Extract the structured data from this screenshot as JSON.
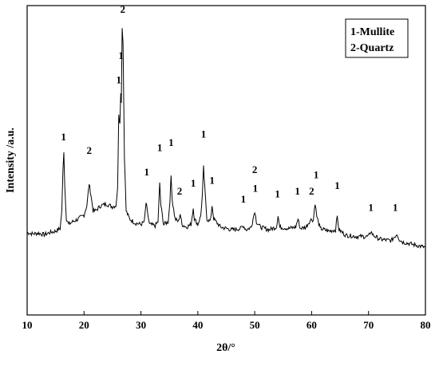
{
  "chart_data": {
    "type": "line",
    "title": "",
    "xlabel": "2θ/°",
    "ylabel": "Intensity /a.u.",
    "xlim": [
      10,
      80
    ],
    "ylim": [
      0,
      100
    ],
    "x_ticks": [
      10,
      20,
      30,
      40,
      50,
      60,
      70,
      80
    ],
    "grid": false,
    "legend": {
      "placement": "top-right",
      "entries": [
        "1-Mullite",
        "2-Quartz"
      ]
    },
    "series": [
      {
        "color": "#000000",
        "points": [
          [
            10,
            26
          ],
          [
            11,
            25.5
          ],
          [
            12,
            25.8
          ],
          [
            13,
            25.2
          ],
          [
            14,
            26
          ],
          [
            15,
            26.5
          ],
          [
            15.8,
            27.5
          ],
          [
            16.1,
            34
          ],
          [
            16.3,
            50
          ],
          [
            16.45,
            56
          ],
          [
            16.6,
            44
          ],
          [
            16.9,
            31
          ],
          [
            17.3,
            29
          ],
          [
            18,
            30
          ],
          [
            19,
            31
          ],
          [
            20,
            32.5
          ],
          [
            20.5,
            36
          ],
          [
            20.9,
            44
          ],
          [
            21.2,
            40
          ],
          [
            21.6,
            34
          ],
          [
            22,
            34
          ],
          [
            23,
            36
          ],
          [
            24,
            36.5
          ],
          [
            25,
            35.5
          ],
          [
            25.6,
            36
          ],
          [
            25.9,
            42
          ],
          [
            26.1,
            70
          ],
          [
            26.3,
            66
          ],
          [
            26.45,
            78
          ],
          [
            26.55,
            74
          ],
          [
            26.7,
            102
          ],
          [
            26.85,
            96
          ],
          [
            27.1,
            54
          ],
          [
            27.4,
            34
          ],
          [
            28,
            31
          ],
          [
            29,
            29.5
          ],
          [
            30,
            29
          ],
          [
            30.6,
            30
          ],
          [
            30.9,
            37
          ],
          [
            31.1,
            34
          ],
          [
            31.5,
            29
          ],
          [
            32.5,
            28.5
          ],
          [
            33,
            30
          ],
          [
            33.3,
            44
          ],
          [
            33.5,
            36
          ],
          [
            34,
            29
          ],
          [
            34.8,
            30
          ],
          [
            35.1,
            38
          ],
          [
            35.3,
            47
          ],
          [
            35.5,
            38
          ],
          [
            36,
            31
          ],
          [
            36.6,
            30
          ],
          [
            36.9,
            33
          ],
          [
            37.2,
            29
          ],
          [
            38,
            28
          ],
          [
            38.8,
            29
          ],
          [
            39.2,
            35
          ],
          [
            39.4,
            31
          ],
          [
            40,
            29
          ],
          [
            40.5,
            32
          ],
          [
            40.8,
            40
          ],
          [
            41,
            50
          ],
          [
            41.2,
            43
          ],
          [
            41.6,
            31
          ],
          [
            42.2,
            30
          ],
          [
            42.5,
            36
          ],
          [
            42.8,
            31
          ],
          [
            44,
            28
          ],
          [
            46,
            27
          ],
          [
            47.5,
            27.5
          ],
          [
            48,
            28.5
          ],
          [
            48.5,
            27
          ],
          [
            49.4,
            28
          ],
          [
            49.7,
            31
          ],
          [
            50,
            34
          ],
          [
            50.3,
            30
          ],
          [
            51,
            28
          ],
          [
            52.5,
            27
          ],
          [
            53.8,
            28
          ],
          [
            54.1,
            32
          ],
          [
            54.4,
            28
          ],
          [
            56,
            27.5
          ],
          [
            57.2,
            28
          ],
          [
            57.6,
            31
          ],
          [
            58,
            27.5
          ],
          [
            59,
            28
          ],
          [
            59.6,
            30
          ],
          [
            60,
            31
          ],
          [
            60.3,
            30.5
          ],
          [
            60.6,
            37
          ],
          [
            60.9,
            32
          ],
          [
            61.5,
            27.5
          ],
          [
            63,
            26.5
          ],
          [
            64.2,
            27
          ],
          [
            64.5,
            32
          ],
          [
            64.8,
            27
          ],
          [
            66,
            25
          ],
          [
            68,
            24.5
          ],
          [
            70,
            24.5
          ],
          [
            70.4,
            26.5
          ],
          [
            70.8,
            25
          ],
          [
            72,
            23.5
          ],
          [
            74,
            23
          ],
          [
            74.6,
            24.5
          ],
          [
            75,
            25.5
          ],
          [
            75.4,
            23.5
          ],
          [
            76,
            22.5
          ],
          [
            77,
            22
          ],
          [
            78,
            21.5
          ],
          [
            79,
            21
          ],
          [
            80,
            20.5
          ]
        ]
      }
    ],
    "annotations": [
      {
        "text": "1",
        "x": 16.4,
        "y": 60
      },
      {
        "text": "2",
        "x": 20.9,
        "y": 55
      },
      {
        "text": "1",
        "x": 26.1,
        "y": 81
      },
      {
        "text": "1",
        "x": 26.5,
        "y": 90
      },
      {
        "text": "2",
        "x": 26.8,
        "y": 107
      },
      {
        "text": "1",
        "x": 31.0,
        "y": 47
      },
      {
        "text": "1",
        "x": 33.3,
        "y": 56
      },
      {
        "text": "1",
        "x": 35.3,
        "y": 58
      },
      {
        "text": "2",
        "x": 36.8,
        "y": 40
      },
      {
        "text": "1",
        "x": 39.2,
        "y": 43
      },
      {
        "text": "1",
        "x": 41.0,
        "y": 61
      },
      {
        "text": "1",
        "x": 42.5,
        "y": 44
      },
      {
        "text": "1",
        "x": 48.0,
        "y": 37
      },
      {
        "text": "2",
        "x": 50.0,
        "y": 48
      },
      {
        "text": "1",
        "x": 50.1,
        "y": 41
      },
      {
        "text": "1",
        "x": 54.0,
        "y": 39
      },
      {
        "text": "1",
        "x": 57.5,
        "y": 40
      },
      {
        "text": "2",
        "x": 60.0,
        "y": 40
      },
      {
        "text": "1",
        "x": 60.8,
        "y": 46
      },
      {
        "text": "1",
        "x": 64.5,
        "y": 42
      },
      {
        "text": "1",
        "x": 70.4,
        "y": 34
      },
      {
        "text": "1",
        "x": 74.7,
        "y": 34
      }
    ]
  }
}
